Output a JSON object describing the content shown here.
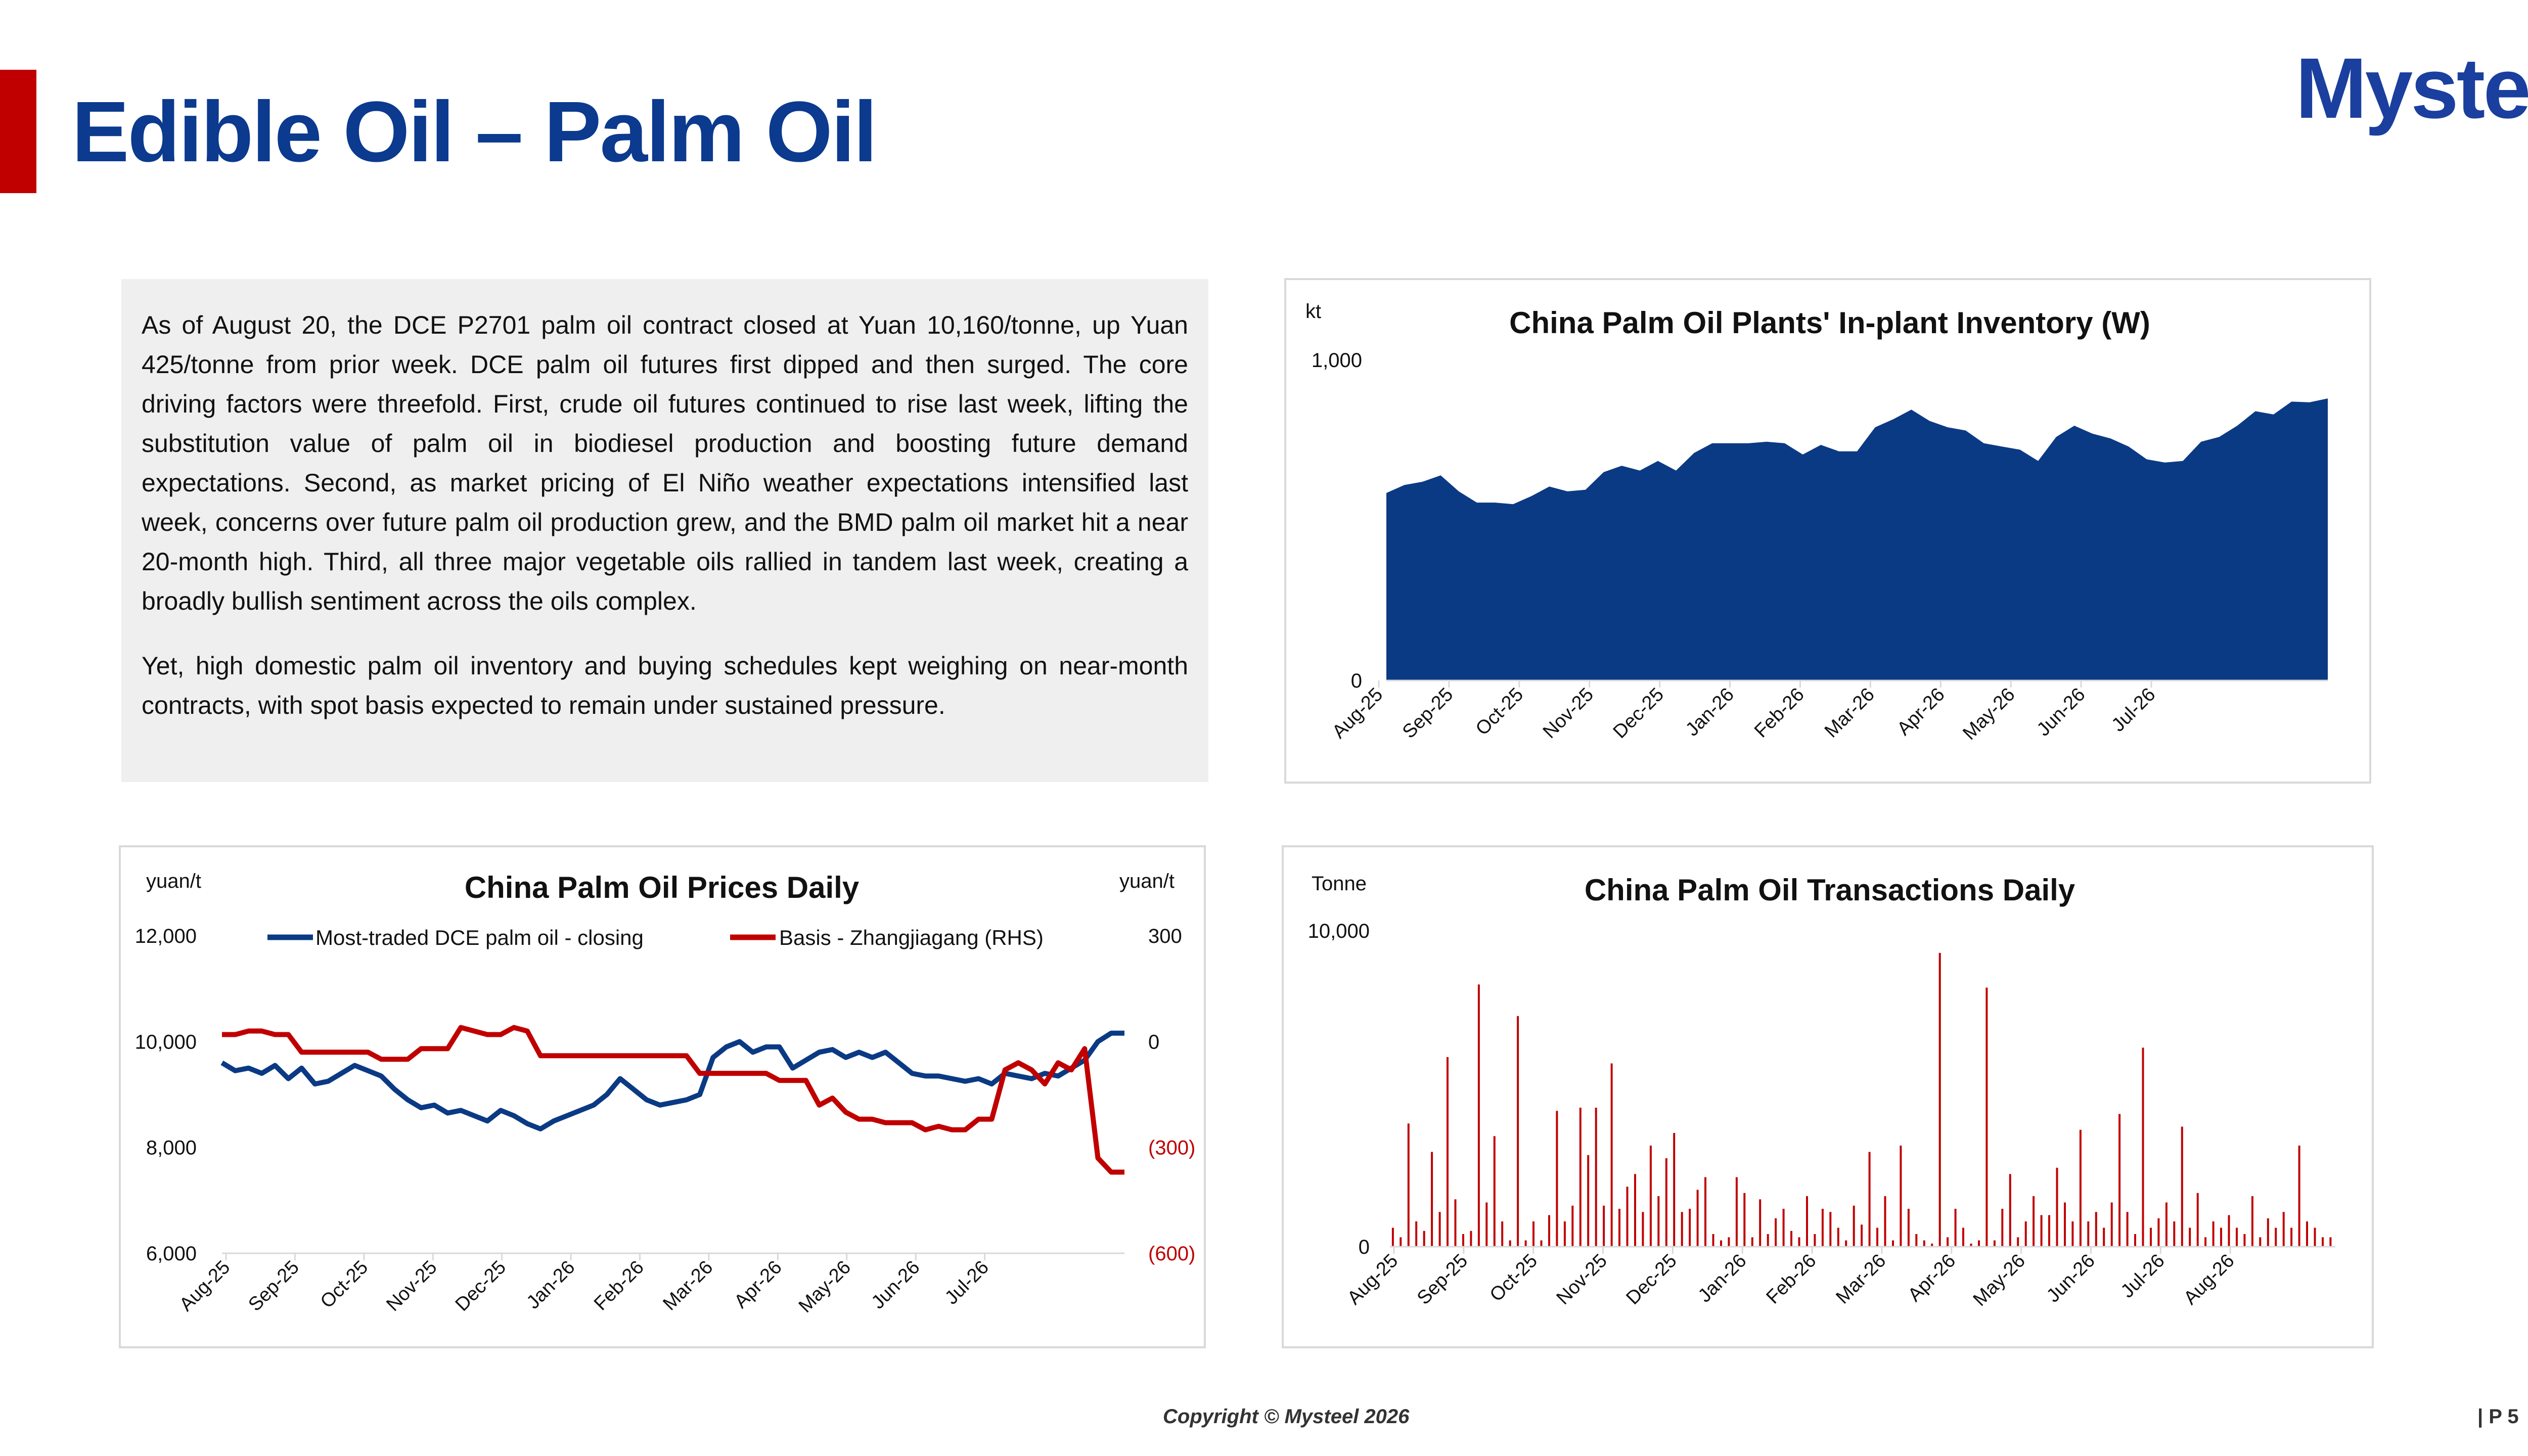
{
  "page": {
    "title": "Edible Oil – Palm Oil",
    "logo": "Mysteel",
    "copyright": "Copyright © Mysteel 2026",
    "page_number": "| P 5",
    "accent_color": "#c00000",
    "brand_color": "#0b3a8e"
  },
  "commentary": {
    "paragraphs": [
      "As of August 20, the DCE P2701 palm oil contract closed at Yuan 10,160/tonne, up Yuan 425/tonne from prior week. DCE palm oil futures first dipped and then surged. The core driving factors were threefold. First, crude oil futures continued to rise last week, lifting the substitution value of palm oil in biodiesel production and boosting future demand expectations. Second, as market pricing of El Niño weather expectations intensified last week, concerns over future palm oil production grew, and the BMD palm oil market hit a near 20-month high. Third, all three major vegetable oils rallied in tandem last week, creating a broadly bullish sentiment across the oils complex.",
      "Yet, high domestic palm oil inventory and buying schedules kept weighing on near-month contracts, with spot basis expected to remain under sustained pressure."
    ]
  },
  "chart_data": [
    {
      "id": "inventory",
      "type": "area",
      "title": "China Palm Oil Plants' In-plant Inventory (W)",
      "unit_label": "kt",
      "ylim": [
        0,
        1000
      ],
      "yticks": [
        0,
        1000
      ],
      "ytick_labels": [
        "0",
        "1,000"
      ],
      "x_tick_labels": [
        "Aug-25",
        "Sep-25",
        "Oct-25",
        "Nov-25",
        "Dec-25",
        "Jan-26",
        "Feb-26",
        "Mar-26",
        "Apr-26",
        "May-26",
        "Jun-26",
        "Jul-26"
      ],
      "color": "#0b3a84",
      "values": [
        585,
        610,
        620,
        640,
        590,
        555,
        555,
        550,
        575,
        605,
        590,
        595,
        650,
        670,
        655,
        685,
        655,
        710,
        740,
        740,
        740,
        745,
        740,
        705,
        735,
        715,
        715,
        790,
        815,
        845,
        810,
        790,
        780,
        740,
        730,
        720,
        685,
        760,
        795,
        770,
        755,
        730,
        690,
        680,
        685,
        745,
        760,
        795,
        840,
        830,
        870,
        868,
        880
      ]
    },
    {
      "id": "prices",
      "type": "line",
      "title": "China Palm Oil Prices Daily",
      "left_unit": "yuan/t",
      "right_unit": "yuan/t",
      "ylim": [
        6000,
        12000
      ],
      "yticks": [
        6000,
        8000,
        10000,
        12000
      ],
      "ytick_labels": [
        "6,000",
        "8,000",
        "10,000",
        "12,000"
      ],
      "y2lim": [
        -600,
        300
      ],
      "y2ticks": [
        -600,
        -300,
        0,
        300
      ],
      "y2tick_labels": [
        "(600)",
        "(300)",
        "0",
        "300"
      ],
      "y2_negative_color": "#c00000",
      "x_tick_labels": [
        "Aug-25",
        "Sep-25",
        "Oct-25",
        "Nov-25",
        "Dec-25",
        "Jan-26",
        "Feb-26",
        "Mar-26",
        "Apr-26",
        "May-26",
        "Jun-26",
        "Jul-26"
      ],
      "series": [
        {
          "name": "Most-traded DCE palm oil - closing",
          "axis": "left",
          "color": "#0b3a84",
          "values": [
            9600,
            9450,
            9500,
            9400,
            9550,
            9300,
            9500,
            9200,
            9250,
            9400,
            9550,
            9450,
            9350,
            9100,
            8900,
            8750,
            8800,
            8650,
            8700,
            8600,
            8500,
            8700,
            8600,
            8450,
            8350,
            8500,
            8600,
            8700,
            8800,
            9000,
            9300,
            9100,
            8900,
            8800,
            8850,
            8900,
            9000,
            9700,
            9900,
            10000,
            9800,
            9900,
            9900,
            9500,
            9650,
            9800,
            9850,
            9700,
            9800,
            9700,
            9800,
            9600,
            9400,
            9350,
            9350,
            9300,
            9250,
            9300,
            9200,
            9400,
            9350,
            9300,
            9400,
            9350,
            9500,
            9650,
            10000,
            10160,
            10160
          ]
        },
        {
          "name": "Basis - Zhangjiagang (RHS)",
          "axis": "right",
          "color": "#c00000",
          "values": [
            20,
            20,
            30,
            30,
            20,
            20,
            -30,
            -30,
            -30,
            -30,
            -30,
            -30,
            -50,
            -50,
            -50,
            -20,
            -20,
            -20,
            40,
            30,
            20,
            20,
            40,
            30,
            -40,
            -40,
            -40,
            -40,
            -40,
            -40,
            -40,
            -40,
            -40,
            -40,
            -40,
            -40,
            -90,
            -90,
            -90,
            -90,
            -90,
            -90,
            -110,
            -110,
            -110,
            -180,
            -160,
            -200,
            -220,
            -220,
            -230,
            -230,
            -230,
            -250,
            -240,
            -250,
            -250,
            -220,
            -220,
            -80,
            -60,
            -80,
            -120,
            -60,
            -80,
            -20,
            -330,
            -370,
            -370
          ]
        }
      ]
    },
    {
      "id": "transactions",
      "type": "bar",
      "title": "China Palm Oil Transactions Daily",
      "unit_label": "Tonne",
      "ylim": [
        0,
        10000
      ],
      "yticks": [
        0,
        10000
      ],
      "ytick_labels": [
        "0",
        "10,000"
      ],
      "x_tick_labels": [
        "Aug-25",
        "Sep-25",
        "Oct-25",
        "Nov-25",
        "Dec-25",
        "Jan-26",
        "Feb-26",
        "Mar-26",
        "Apr-26",
        "May-26",
        "Jun-26",
        "Jul-26",
        "Aug-26"
      ],
      "color": "#c00000",
      "values": [
        600,
        300,
        3900,
        800,
        500,
        3000,
        1100,
        6000,
        1500,
        400,
        500,
        8300,
        1400,
        3500,
        800,
        200,
        7300,
        200,
        800,
        200,
        1000,
        4300,
        800,
        1300,
        4400,
        2900,
        4400,
        1300,
        5800,
        1200,
        1900,
        2300,
        1100,
        3200,
        1600,
        2800,
        3600,
        1100,
        1200,
        1800,
        2200,
        400,
        200,
        300,
        2200,
        1700,
        300,
        1500,
        400,
        900,
        1200,
        500,
        300,
        1600,
        400,
        1200,
        1100,
        600,
        200,
        1300,
        700,
        3000,
        600,
        1600,
        200,
        3200,
        1200,
        400,
        200,
        100,
        9300,
        300,
        1200,
        600,
        100,
        200,
        8200,
        200,
        1200,
        2300,
        300,
        800,
        1600,
        1000,
        1000,
        2500,
        1400,
        800,
        3700,
        800,
        1100,
        600,
        1400,
        4200,
        1100,
        400,
        6300,
        600,
        900,
        1400,
        800,
        3800,
        600,
        1700,
        300,
        800,
        600,
        1000,
        600,
        400,
        1600,
        300,
        900,
        600,
        1100,
        600,
        3200,
        800,
        600,
        300,
        300
      ]
    }
  ]
}
